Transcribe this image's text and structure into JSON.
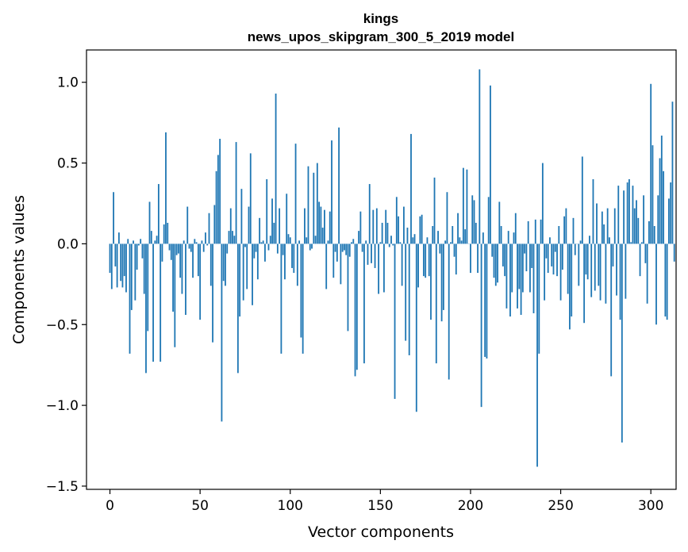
{
  "chart_data": {
    "type": "bar",
    "title": "kings",
    "subtitle": "news_upos_skipgram_300_5_2019 model",
    "xlabel": "Vector components",
    "ylabel": "Components values",
    "xlim": [
      -13,
      314
    ],
    "ylim": [
      -1.52,
      1.2
    ],
    "xticks": [
      0,
      50,
      100,
      150,
      200,
      250,
      300
    ],
    "yticks": [
      -1.5,
      -1.0,
      -0.5,
      0.0,
      0.5,
      1.0
    ],
    "ytick_labels": [
      "−1.5",
      "−1.0",
      "−0.5",
      "0.0",
      "0.5",
      "1.0"
    ],
    "bar_color": "#1f77b4",
    "values": [
      -0.18,
      -0.28,
      0.32,
      -0.14,
      -0.27,
      0.07,
      -0.23,
      -0.27,
      -0.2,
      -0.3,
      0.03,
      -0.68,
      -0.41,
      0.02,
      -0.35,
      -0.16,
      -0.01,
      0.03,
      -0.09,
      -0.31,
      -0.8,
      -0.54,
      0.26,
      0.08,
      -0.73,
      0.02,
      0.05,
      0.37,
      -0.73,
      -0.11,
      0.12,
      0.69,
      0.13,
      -0.04,
      -0.1,
      -0.42,
      -0.64,
      -0.07,
      -0.06,
      -0.21,
      -0.31,
      0.02,
      -0.44,
      0.23,
      -0.03,
      -0.05,
      -0.21,
      0.03,
      0.01,
      -0.2,
      -0.47,
      0.02,
      -0.05,
      0.07,
      -0.01,
      0.19,
      -0.26,
      -0.61,
      0.24,
      0.45,
      0.55,
      0.65,
      -1.1,
      -0.23,
      -0.26,
      -0.06,
      0.08,
      0.22,
      0.08,
      0.05,
      0.63,
      -0.8,
      -0.45,
      0.34,
      -0.35,
      -0.02,
      -0.28,
      0.23,
      0.56,
      -0.38,
      -0.09,
      -0.05,
      -0.22,
      0.16,
      0.01,
      0.02,
      -0.11,
      0.4,
      -0.04,
      0.05,
      0.28,
      0.13,
      0.93,
      -0.06,
      0.22,
      -0.68,
      -0.07,
      -0.22,
      0.31,
      0.06,
      0.04,
      -0.15,
      -0.18,
      0.62,
      -0.26,
      0.02,
      -0.58,
      -0.68,
      0.22,
      0.04,
      0.48,
      -0.04,
      -0.03,
      0.44,
      0.05,
      0.5,
      0.26,
      0.23,
      0.1,
      0.21,
      -0.28,
      0.02,
      0.2,
      0.64,
      -0.21,
      -0.05,
      -0.11,
      0.72,
      -0.25,
      -0.05,
      -0.04,
      -0.07,
      -0.54,
      -0.08,
      0.01,
      0.03,
      -0.82,
      -0.78,
      0.08,
      0.2,
      -0.05,
      -0.74,
      0.02,
      -0.13,
      0.37,
      -0.12,
      0.21,
      -0.15,
      0.22,
      -0.31,
      0.01,
      0.13,
      -0.3,
      0.21,
      0.13,
      -0.02,
      0.05,
      -0.01,
      -0.96,
      0.29,
      0.17,
      0.01,
      -0.26,
      0.23,
      -0.6,
      0.1,
      -0.69,
      0.68,
      0.04,
      0.06,
      -1.04,
      -0.27,
      0.17,
      0.18,
      -0.2,
      -0.21,
      0.04,
      -0.2,
      -0.47,
      0.11,
      0.41,
      -0.74,
      0.08,
      -0.06,
      -0.48,
      -0.41,
      0.02,
      0.32,
      -0.84,
      0.01,
      0.11,
      -0.08,
      -0.19,
      0.19,
      0.04,
      0.02,
      0.47,
      0.09,
      0.46,
      0.0,
      -0.18,
      0.3,
      0.27,
      0.13,
      -0.18,
      1.08,
      -1.01,
      0.07,
      -0.7,
      -0.71,
      0.29,
      0.98,
      -0.08,
      -0.21,
      -0.26,
      -0.24,
      0.26,
      0.11,
      -0.14,
      -0.2,
      -0.4,
      0.08,
      -0.45,
      -0.3,
      0.07,
      0.19,
      -0.4,
      -0.28,
      -0.44,
      -0.3,
      -0.06,
      -0.17,
      0.14,
      -0.3,
      -0.15,
      -0.43,
      0.15,
      -1.38,
      -0.68,
      0.15,
      0.5,
      -0.35,
      -0.09,
      -0.18,
      0.04,
      -0.14,
      -0.19,
      -0.05,
      -0.2,
      0.11,
      -0.35,
      -0.16,
      0.17,
      0.22,
      -0.31,
      -0.53,
      -0.45,
      0.16,
      -0.07,
      0.0,
      -0.26,
      0.02,
      0.54,
      -0.49,
      -0.19,
      -0.22,
      0.05,
      -0.33,
      0.4,
      -0.29,
      0.25,
      -0.26,
      -0.35,
      0.2,
      0.12,
      -0.37,
      0.22,
      0.04,
      -0.82,
      -0.14,
      0.22,
      -0.32,
      0.36,
      -0.47,
      -1.23,
      0.33,
      -0.34,
      0.38,
      0.4,
      0.01,
      0.36,
      0.22,
      0.27,
      0.16,
      -0.2,
      0.01,
      0.3,
      -0.12,
      -0.37,
      0.14,
      0.99,
      0.61,
      0.11,
      -0.5,
      0.3,
      0.53,
      0.67,
      0.45,
      -0.45,
      -0.47,
      0.28,
      0.38,
      0.88,
      -0.11
    ]
  }
}
